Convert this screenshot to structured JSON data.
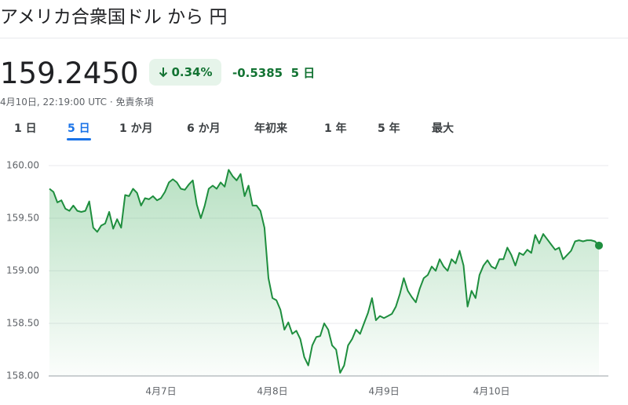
{
  "header": {
    "title": "アメリカ合衆国ドル から 円",
    "price": "159.2450",
    "change_pct": "0.34%",
    "change_abs": "-0.5385",
    "period": "5 日",
    "timestamp": "4月10日, 22:19:00 UTC · 免責条項"
  },
  "tabs": [
    "1 日",
    "5 日",
    "1 か月",
    "6 か月",
    "年初来",
    "1 年",
    "5 年",
    "最大"
  ],
  "active_tab": 1,
  "chart_data": {
    "type": "line",
    "color": "#1e8e3e",
    "grid": true,
    "end_marker": true,
    "ylim": [
      158,
      160
    ],
    "yticks": [
      {
        "value": 158,
        "label": "158.00"
      },
      {
        "value": 158.5,
        "label": "158.50"
      },
      {
        "value": 159,
        "label": "159.00"
      },
      {
        "value": 159.5,
        "label": "159.50"
      },
      {
        "value": 160,
        "label": "160.00"
      }
    ],
    "categories": [
      null,
      null,
      null,
      null,
      null,
      null,
      null,
      null,
      null,
      null,
      null,
      null,
      null,
      null,
      null,
      null,
      null,
      null,
      null,
      null,
      null,
      null,
      null,
      null,
      null,
      null,
      null,
      null,
      "4月7日",
      null,
      null,
      null,
      null,
      null,
      null,
      null,
      null,
      null,
      null,
      null,
      null,
      null,
      null,
      null,
      null,
      null,
      null,
      null,
      null,
      null,
      null,
      null,
      null,
      null,
      null,
      null,
      "4月8日",
      null,
      null,
      null,
      null,
      null,
      null,
      null,
      null,
      null,
      null,
      null,
      null,
      null,
      null,
      null,
      null,
      null,
      null,
      null,
      null,
      null,
      null,
      null,
      null,
      null,
      null,
      null,
      "4月9日",
      null,
      null,
      null,
      null,
      null,
      null,
      null,
      null,
      null,
      null,
      null,
      null,
      null,
      null,
      null,
      null,
      null,
      null,
      null,
      null,
      null,
      null,
      null,
      null,
      null,
      null,
      "4月10日",
      null,
      null,
      null,
      null,
      null,
      null,
      null,
      null,
      null,
      null,
      null,
      null,
      null,
      null,
      null,
      null,
      null,
      null,
      null,
      null,
      null,
      null,
      null,
      null,
      null,
      null,
      null
    ],
    "values": [
      159.78,
      159.75,
      159.65,
      159.67,
      159.59,
      159.57,
      159.62,
      159.57,
      159.56,
      159.57,
      159.66,
      159.41,
      159.37,
      159.43,
      159.45,
      159.56,
      159.4,
      159.49,
      159.41,
      159.72,
      159.71,
      159.78,
      159.74,
      159.62,
      159.69,
      159.68,
      159.71,
      159.67,
      159.69,
      159.75,
      159.84,
      159.87,
      159.84,
      159.78,
      159.77,
      159.82,
      159.86,
      159.63,
      159.5,
      159.62,
      159.78,
      159.81,
      159.78,
      159.84,
      159.8,
      159.96,
      159.9,
      159.86,
      159.92,
      159.71,
      159.81,
      159.62,
      159.62,
      159.57,
      159.41,
      158.93,
      158.74,
      158.72,
      158.63,
      158.44,
      158.51,
      158.4,
      158.43,
      158.35,
      158.18,
      158.1,
      158.29,
      158.37,
      158.38,
      158.5,
      158.44,
      158.29,
      158.25,
      158.03,
      158.1,
      158.29,
      158.35,
      158.44,
      158.4,
      158.5,
      158.6,
      158.74,
      158.53,
      158.57,
      158.55,
      158.57,
      158.59,
      158.66,
      158.78,
      158.93,
      158.81,
      158.75,
      158.7,
      158.83,
      158.93,
      158.96,
      159.04,
      159.0,
      159.11,
      159.04,
      159.0,
      159.11,
      159.07,
      159.19,
      159.05,
      158.66,
      158.81,
      158.74,
      158.96,
      159.05,
      159.1,
      159.04,
      159.02,
      159.11,
      159.11,
      159.22,
      159.15,
      159.05,
      159.17,
      159.15,
      159.2,
      159.17,
      159.34,
      159.26,
      159.35,
      159.3,
      159.25,
      159.2,
      159.22,
      159.11,
      159.15,
      159.19,
      159.28,
      159.29,
      159.28,
      159.29,
      159.29,
      159.28,
      159.24
    ]
  }
}
